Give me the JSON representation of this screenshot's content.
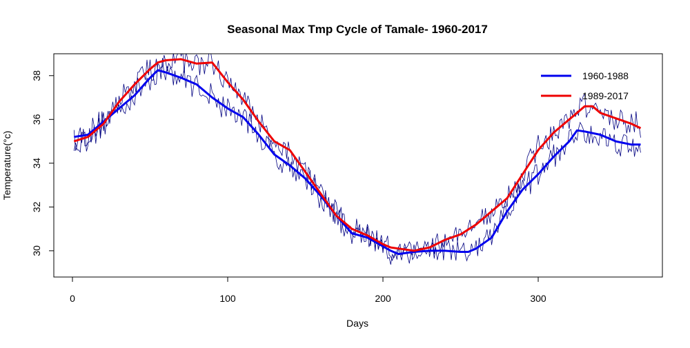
{
  "chart_data": {
    "type": "line",
    "title": "Seasonal Max Tmp Cycle of Tamale- 1960-2017",
    "xlabel": "Days",
    "ylabel": "Temperature(°c)",
    "xlim": [
      -12,
      380
    ],
    "ylim": [
      28.8,
      39.0
    ],
    "xticks": [
      0,
      100,
      200,
      300
    ],
    "yticks": [
      30,
      32,
      34,
      36,
      38
    ],
    "legend_position": "top-right",
    "grid": false,
    "series": [
      {
        "name": "1960-1988",
        "color": "#0000ee",
        "daily_color": "#000080",
        "x": [
          1,
          10,
          20,
          30,
          40,
          50,
          55,
          60,
          70,
          80,
          90,
          100,
          110,
          120,
          130,
          140,
          150,
          160,
          170,
          180,
          190,
          200,
          205,
          210,
          220,
          230,
          240,
          250,
          255,
          260,
          270,
          280,
          290,
          300,
          310,
          320,
          325,
          330,
          340,
          350,
          360,
          366
        ],
        "values": [
          35.2,
          35.3,
          35.9,
          36.5,
          37.1,
          37.9,
          38.25,
          38.15,
          37.9,
          37.6,
          37.0,
          36.5,
          36.1,
          35.3,
          34.4,
          33.9,
          33.3,
          32.5,
          31.6,
          30.8,
          30.6,
          30.2,
          30.0,
          29.85,
          29.95,
          30.0,
          30.0,
          29.95,
          29.95,
          30.1,
          30.6,
          31.8,
          32.8,
          33.5,
          34.3,
          35.0,
          35.5,
          35.45,
          35.3,
          35.0,
          34.85,
          34.85
        ]
      },
      {
        "name": "1989-2017",
        "color": "#ee0000",
        "daily_color": "#000080",
        "x": [
          1,
          10,
          20,
          30,
          40,
          50,
          55,
          60,
          70,
          80,
          90,
          100,
          110,
          120,
          130,
          140,
          150,
          160,
          170,
          180,
          190,
          200,
          205,
          210,
          220,
          230,
          240,
          250,
          260,
          270,
          280,
          290,
          300,
          310,
          320,
          330,
          335,
          340,
          350,
          360,
          366
        ],
        "values": [
          35.0,
          35.2,
          35.8,
          36.8,
          37.6,
          38.3,
          38.6,
          38.7,
          38.75,
          38.55,
          38.6,
          37.7,
          36.9,
          35.9,
          35.0,
          34.6,
          33.6,
          32.6,
          31.6,
          31.0,
          30.7,
          30.3,
          30.15,
          30.1,
          30.0,
          30.15,
          30.5,
          30.75,
          31.2,
          31.8,
          32.4,
          33.5,
          34.6,
          35.4,
          36.0,
          36.6,
          36.6,
          36.3,
          36.05,
          35.8,
          35.6
        ]
      }
    ]
  }
}
